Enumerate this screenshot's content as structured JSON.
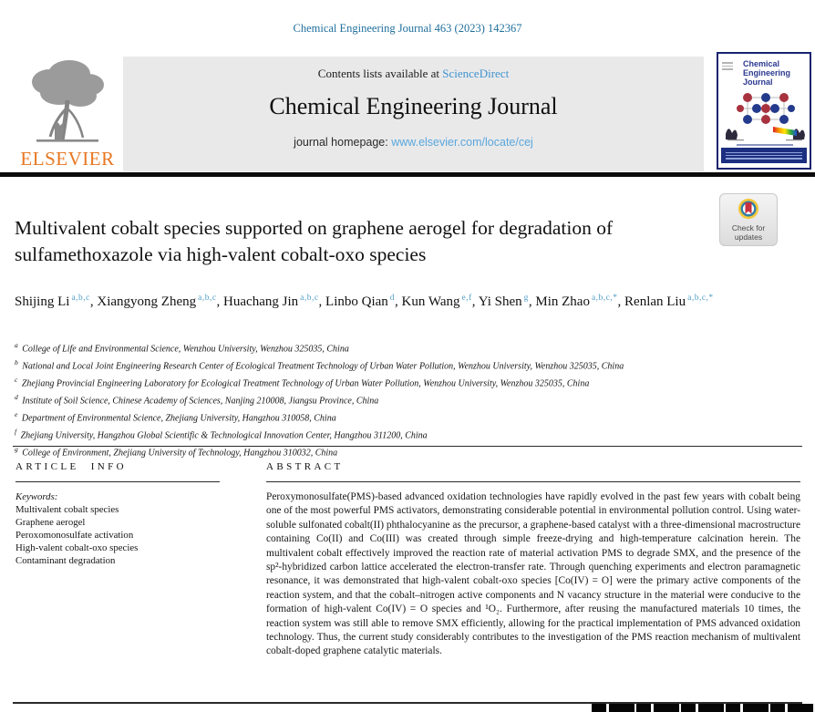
{
  "page": {
    "citation": "Chemical Engineering Journal 463 (2023) 142367"
  },
  "header": {
    "contents_prefix": "Contents lists available at ",
    "sciencedirect_link": "ScienceDirect",
    "journal_name": "Chemical Engineering Journal",
    "homepage_label": "journal homepage: ",
    "homepage_url": "www.elsevier.com/locate/cej",
    "elsevier_wordmark": "ELSEVIER",
    "icons": {
      "publisher_logo": "elsevier-tree-icon",
      "cover_thumbnail": "journal-cover-thumbnail"
    }
  },
  "cover": {
    "line1": "Chemical",
    "line2": "Engineering",
    "line3": "Journal"
  },
  "update_badge": {
    "line1": "Check for",
    "line2": "updates",
    "icon": "check-updates-icon"
  },
  "article": {
    "title": "Multivalent cobalt species supported on graphene aerogel for degradation of sulfamethoxazole via high-valent cobalt-oxo species",
    "authors": [
      {
        "name": "Shijing Li",
        "sups": "a,b,c"
      },
      {
        "name": "Xiangyong Zheng",
        "sups": "a,b,c"
      },
      {
        "name": "Huachang Jin",
        "sups": "a,b,c"
      },
      {
        "name": "Linbo Qian",
        "sups": "d"
      },
      {
        "name": "Kun Wang",
        "sups": "e,f"
      },
      {
        "name": "Yi Shen",
        "sups": "g"
      },
      {
        "name": "Min Zhao",
        "sups": "a,b,c,*"
      },
      {
        "name": "Renlan Liu",
        "sups": "a,b,c,*"
      }
    ],
    "affiliations": [
      {
        "label": "a",
        "text": "College of Life and Environmental Science, Wenzhou University, Wenzhou 325035, China"
      },
      {
        "label": "b",
        "text": "National and Local Joint Engineering Research Center of Ecological Treatment Technology of Urban Water Pollution, Wenzhou University, Wenzhou 325035, China"
      },
      {
        "label": "c",
        "text": "Zhejiang Provincial Engineering Laboratory for Ecological Treatment Technology of Urban Water Pollution, Wenzhou University, Wenzhou 325035, China"
      },
      {
        "label": "d",
        "text": "Institute of Soil Science, Chinese Academy of Sciences, Nanjing 210008, Jiangsu Province, China"
      },
      {
        "label": "e",
        "text": "Department of Environmental Science, Zhejiang University, Hangzhou 310058, China"
      },
      {
        "label": "f",
        "text": "Zhejiang University, Hangzhou Global Scientific & Technological Innovation Center, Hangzhou 311200, China"
      },
      {
        "label": "g",
        "text": "College of Environment, Zhejiang University of Technology, Hangzhou 310032, China"
      }
    ]
  },
  "article_info": {
    "heading": "ARTICLE INFO",
    "keywords_label": "Keywords:",
    "keywords": [
      "Multivalent cobalt species",
      "Graphene aerogel",
      "Peroxomonosulfate activation",
      "High-valent cobalt-oxo species",
      "Contaminant degradation"
    ]
  },
  "abstract": {
    "heading": "ABSTRACT",
    "text": "Peroxymonosulfate(PMS)-based advanced oxidation technologies have rapidly evolved in the past few years with cobalt being one of the most powerful PMS activators, demonstrating considerable potential in environmental pollution control. Using water-soluble sulfonated cobalt(II) phthalocyanine as the precursor, a graphene-based catalyst with a three-dimensional macrostructure containing Co(II) and Co(III) was created through simple freeze-drying and high-temperature calcination herein. The multivalent cobalt effectively improved the reaction rate of material activation PMS to degrade SMX, and the presence of the sp²-hybridized carbon lattice accelerated the electron-transfer rate. Through quenching experiments and electron paramagnetic resonance, it was demonstrated that high-valent cobalt-oxo species [Co(IV) = O] were the primary active components of the reaction system, and that the cobalt–nitrogen active components and N vacancy structure in the material were conducive to the formation of high-valent Co(IV) = O species and ¹O₂. Furthermore, after reusing the manufactured materials 10 times, the reaction system was still able to remove SMX efficiently, allowing for the practical implementation of PMS advanced oxidation technology. Thus, the current study considerably contributes to the investigation of the PMS reaction mechanism of multivalent cobalt-doped graphene catalytic materials."
  },
  "colors": {
    "citation_blue": "#1f6f9c",
    "link_blue": "#3f93cf",
    "superscript_blue": "#4e9dc8",
    "elsevier_orange": "#e87722",
    "banner_gray": "#e9e9ea",
    "cover_navy": "#18246d"
  }
}
